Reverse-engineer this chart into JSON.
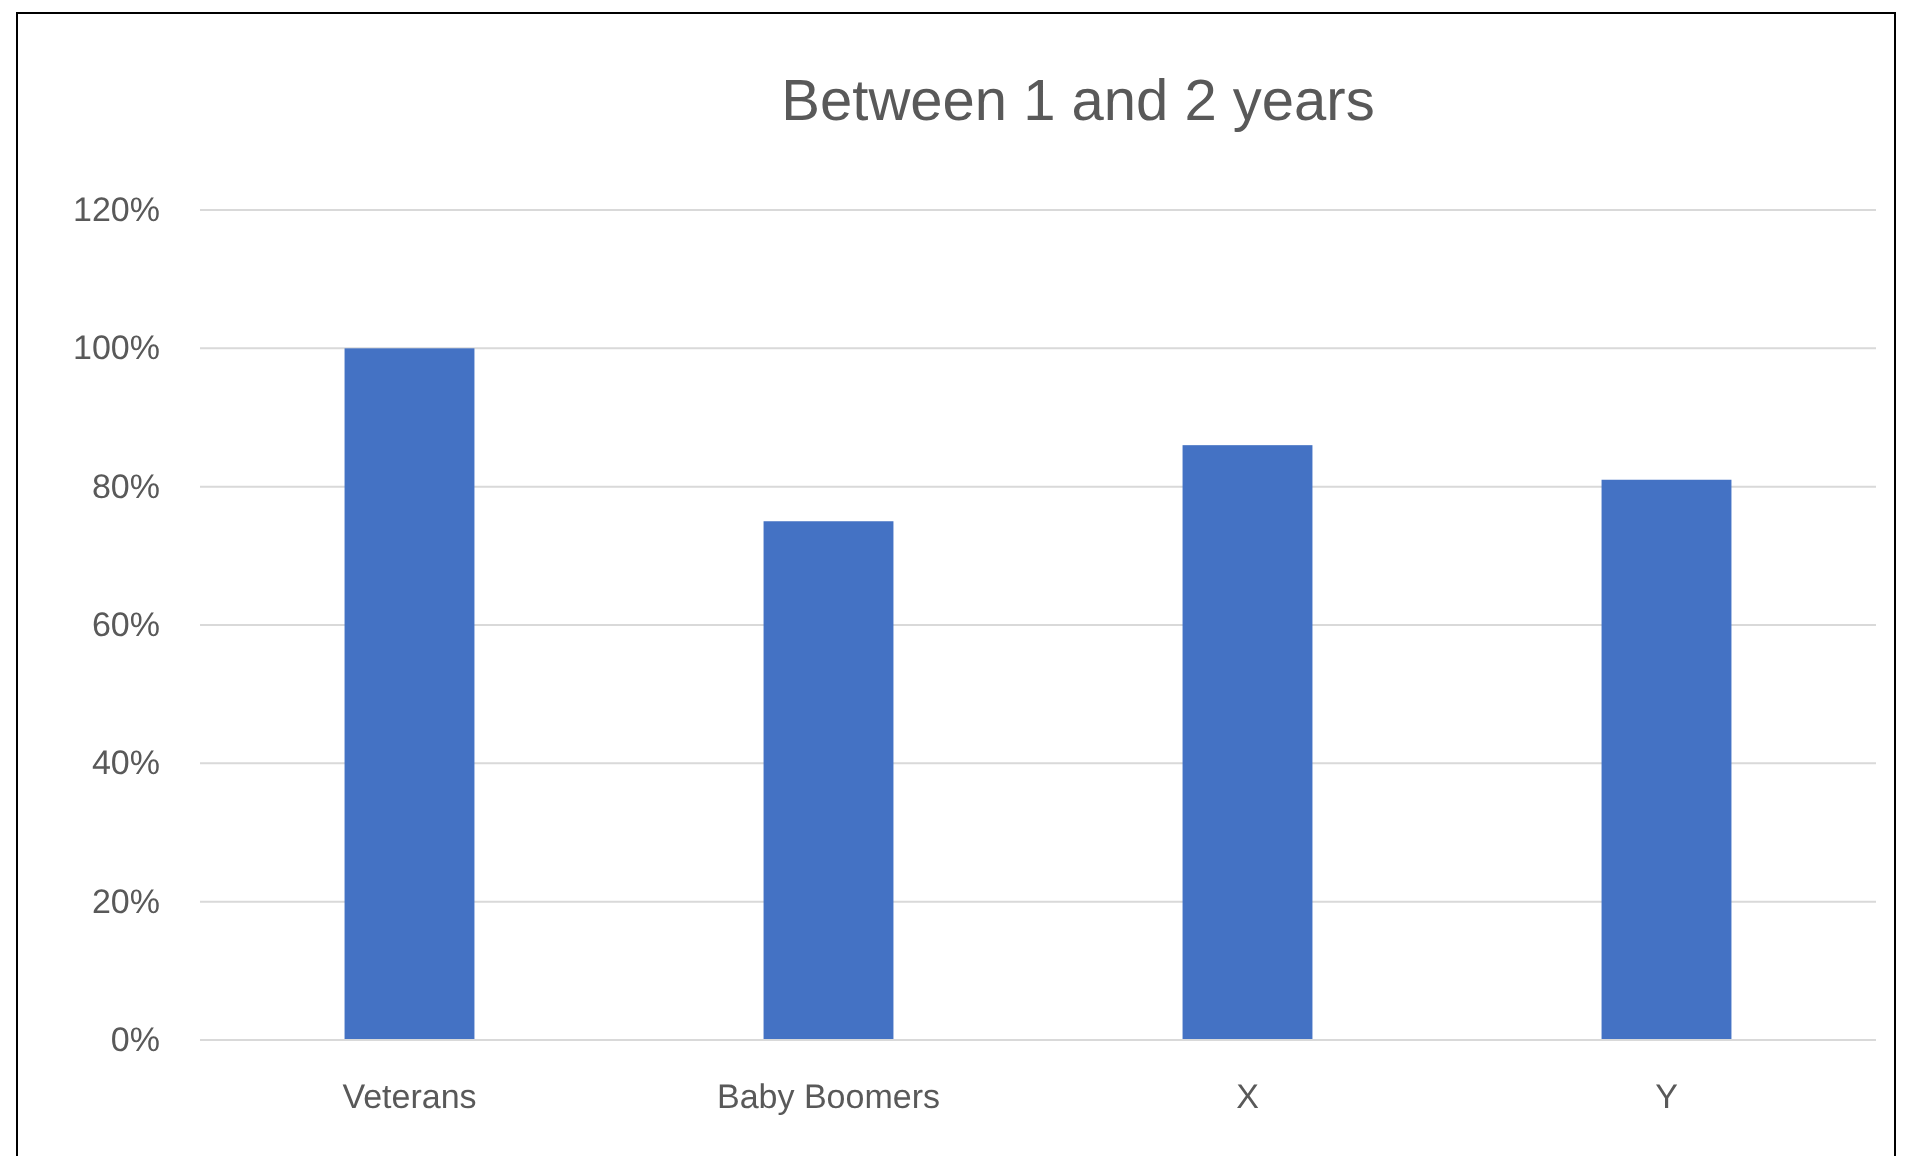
{
  "chart_data": {
    "type": "bar",
    "title": "Between 1 and 2 years",
    "categories": [
      "Veterans",
      "Baby Boomers",
      "X",
      "Y"
    ],
    "values": [
      100,
      75,
      86,
      81
    ],
    "color": "#4472c4",
    "ylim": [
      0,
      120
    ],
    "yticks": [
      {
        "value": 0,
        "label": "0%"
      },
      {
        "value": 20,
        "label": "20%"
      },
      {
        "value": 40,
        "label": "40%"
      },
      {
        "value": 60,
        "label": "60%"
      },
      {
        "value": 80,
        "label": "80%"
      },
      {
        "value": 100,
        "label": "100%"
      },
      {
        "value": 120,
        "label": "120%"
      }
    ],
    "grid": "y"
  }
}
